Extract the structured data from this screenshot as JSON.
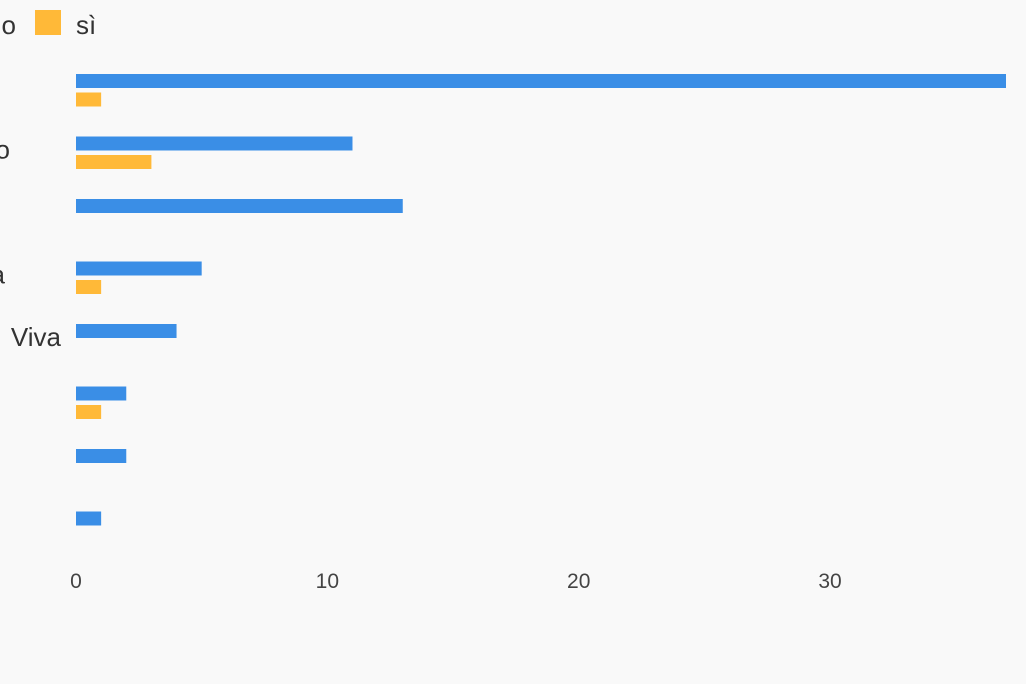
{
  "chart_data": {
    "type": "bar",
    "orientation": "horizontal",
    "categories": [
      "",
      "o",
      "",
      "a",
      "Viva",
      "",
      "",
      ""
    ],
    "series": [
      {
        "name": "o",
        "color": "#3a8ee6",
        "values": [
          37,
          11,
          13,
          5,
          4,
          2,
          2,
          1
        ]
      },
      {
        "name": "sì",
        "color": "#ffb938",
        "values": [
          1,
          3,
          0,
          1,
          0,
          1,
          0,
          0
        ]
      }
    ],
    "xlim": [
      0,
      37
    ],
    "xticks": [
      0,
      10,
      20,
      30
    ],
    "grid": false,
    "legend": "top-left"
  }
}
